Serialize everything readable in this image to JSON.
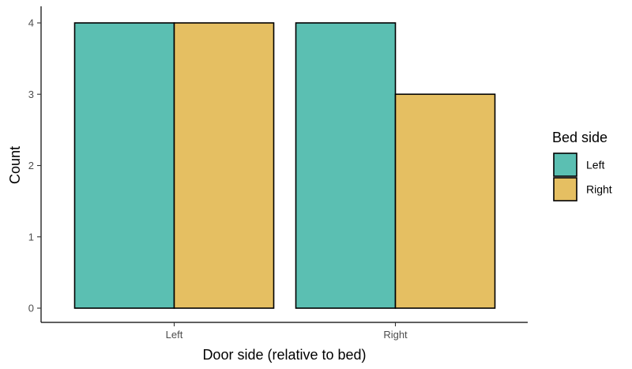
{
  "chart_data": {
    "type": "bar",
    "xlabel": "Door side (relative to bed)",
    "ylabel": "Count",
    "categories": [
      "Left",
      "Right"
    ],
    "ylim": [
      0,
      4
    ],
    "yticks": [
      0,
      1,
      2,
      3,
      4
    ],
    "grid": false,
    "legend": {
      "title": "Bed side",
      "position": "right"
    },
    "series": [
      {
        "name": "Left",
        "values": [
          4,
          4
        ],
        "color": "#5bbfb2"
      },
      {
        "name": "Right",
        "values": [
          4,
          3
        ],
        "color": "#e5bf62"
      }
    ]
  }
}
